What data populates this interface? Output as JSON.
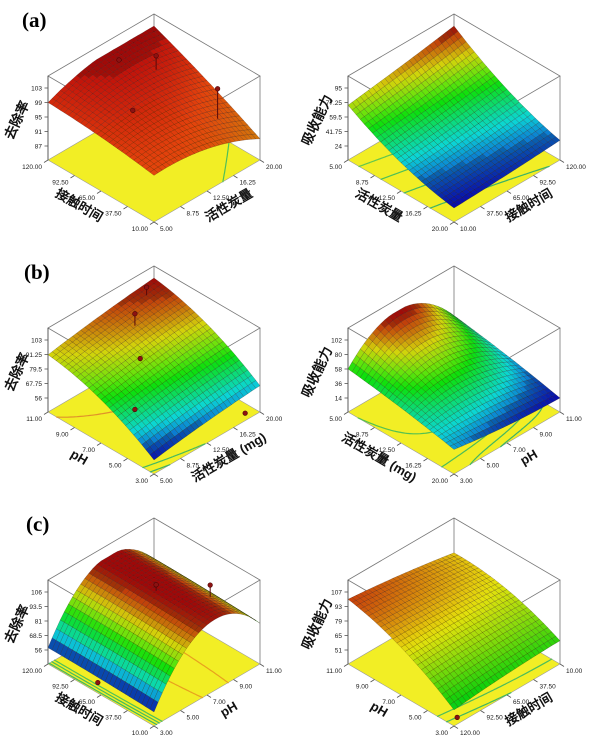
{
  "figure": {
    "background": "#ffffff",
    "panels": [
      {
        "label": "(a)"
      },
      {
        "label": "(b)"
      },
      {
        "label": "(c)"
      }
    ]
  },
  "style_tokens": {
    "floor_color": "#f2ee25",
    "box_line_color": "#777777",
    "axis_line_color": "#555555",
    "tick_text_color": "#1a1a1a",
    "mesh_line_color": "rgba(35,10,10,0.5)",
    "point_color": "#8c1212",
    "point_edge_color": "#4a0404",
    "stick_color": "#5a0808"
  },
  "chart_data": [
    {
      "type": "surface3d",
      "panel": "a",
      "slot": "left",
      "z_axis": {
        "label": "去除率",
        "ticks": [
          "103",
          "99",
          "95",
          "91",
          "87"
        ],
        "range": [
          87,
          103
        ]
      },
      "left_axis": {
        "label": "接触时间",
        "ticks": [
          "120.00",
          "92.50",
          "65.00",
          "37.50",
          "10.00"
        ]
      },
      "right_axis": {
        "label": "活性炭量",
        "ticks": [
          "5.00",
          "8.75",
          "12.50",
          "16.25",
          "20.00"
        ]
      },
      "surface_model": {
        "c0": 96,
        "s": 5,
        "s2": -2,
        "t": 2,
        "t2": -9,
        "st": 11,
        "st2": 0,
        "clamp": [
          87,
          103
        ]
      },
      "colormap": {
        "hue_low": 38,
        "hue_high": 0,
        "ref": [
          87,
          103
        ],
        "dark_low": false
      },
      "contours": [
        {
          "level": 93.5,
          "color": "#4fbf59"
        }
      ],
      "design_points": [
        {
          "s": 0.2,
          "t": 0.8,
          "dz": 30,
          "stick": true
        },
        {
          "s": 0.7,
          "t": 0.72,
          "dz": 14,
          "stick": true
        },
        {
          "s": 0.5,
          "t": 0.3,
          "dz": 3,
          "stick": false
        },
        {
          "s": 0.88,
          "t": 0.55,
          "dz": 3,
          "stick": false
        }
      ]
    },
    {
      "type": "surface3d",
      "panel": "a",
      "slot": "right",
      "z_axis": {
        "label": "吸收能力",
        "ticks": [
          "95",
          "77.25",
          "59.5",
          "41.75",
          "24"
        ],
        "range": [
          24,
          95
        ]
      },
      "left_axis": {
        "label": "活性炭量",
        "ticks": [
          "5.00",
          "8.75",
          "12.50",
          "16.25",
          "20.00"
        ]
      },
      "right_axis": {
        "label": "接触时间",
        "ticks": [
          "10.00",
          "37.50",
          "65.00",
          "92.50",
          "120.00"
        ]
      },
      "surface_model": {
        "c0": 24,
        "s": 20,
        "s2": 30,
        "t": 4,
        "t2": 3,
        "st": 14,
        "st2": 0,
        "clamp": [
          24,
          95
        ]
      },
      "colormap": {
        "hue_low": 240,
        "hue_high": 0,
        "ref": [
          24,
          95
        ],
        "dark_low": true
      },
      "contours": [
        {
          "level": 30,
          "color": "#3db366"
        },
        {
          "level": 40,
          "color": "#46ba5e"
        },
        {
          "level": 52,
          "color": "#4fc056"
        },
        {
          "level": 66,
          "color": "#63c74d"
        }
      ],
      "design_points": []
    },
    {
      "type": "surface3d",
      "panel": "b",
      "slot": "left",
      "z_axis": {
        "label": "去除率",
        "ticks": [
          "103",
          "91.25",
          "79.5",
          "67.75",
          "56"
        ],
        "range": [
          56,
          103
        ]
      },
      "left_axis": {
        "label": "pH",
        "ticks": [
          "11.00",
          "9.00",
          "7.00",
          "5.00",
          "3.00"
        ]
      },
      "right_axis": {
        "label": "活性炭量 (mg)",
        "ticks": [
          "5.00",
          "8.75",
          "12.50",
          "16.25",
          "20.00"
        ]
      },
      "surface_model": {
        "c0": 56,
        "s": 60,
        "s2": -25,
        "t": 14,
        "t2": -4,
        "st": 2,
        "st2": 0,
        "clamp": [
          56,
          103
        ]
      },
      "colormap": {
        "hue_low": 240,
        "hue_high": 0,
        "ref": [
          56,
          103
        ],
        "dark_low": true
      },
      "contours": [
        {
          "level": 58,
          "color": "#3bb06a"
        },
        {
          "level": 62,
          "color": "#47ba5e"
        },
        {
          "level": 90,
          "color": "#e0922a"
        }
      ],
      "design_points": [
        {
          "s": 0.78,
          "t": 0.6,
          "dz": 12,
          "stick": true
        },
        {
          "s": 0.92,
          "t": 0.85,
          "dz": 8,
          "stick": true
        },
        {
          "s": 0.55,
          "t": 0.42,
          "dz": 3,
          "stick": false
        },
        {
          "s": 0.3,
          "t": 0.12,
          "dz": 3,
          "stick": false
        },
        {
          "s": 0.04,
          "t": 0.9,
          "dz": -26,
          "stick": false
        }
      ]
    },
    {
      "type": "surface3d",
      "panel": "b",
      "slot": "right",
      "z_axis": {
        "label": "吸收能力",
        "ticks": [
          "102",
          "80",
          "58",
          "36",
          "14"
        ],
        "range": [
          14,
          102
        ]
      },
      "left_axis": {
        "label": "活性炭量 (mg)",
        "ticks": [
          "5.00",
          "8.75",
          "12.50",
          "16.25",
          "20.00"
        ]
      },
      "right_axis": {
        "label": "pH",
        "ticks": [
          "3.00",
          "5.00",
          "7.00",
          "9.00",
          "11.00"
        ]
      },
      "surface_model": {
        "c0": 30,
        "s": 36,
        "s2": -8,
        "t": -28,
        "t2": 12,
        "st": 220,
        "st2": -217,
        "clamp": [
          14,
          102
        ]
      },
      "colormap": {
        "hue_low": 240,
        "hue_high": 0,
        "ref": [
          14,
          102
        ],
        "dark_low": true
      },
      "contours": [
        {
          "level": 20,
          "color": "#3cb169"
        },
        {
          "level": 26,
          "color": "#42b761"
        },
        {
          "level": 34,
          "color": "#4abd59"
        },
        {
          "level": 56,
          "color": "#55c150"
        }
      ],
      "design_points": []
    },
    {
      "type": "surface3d",
      "panel": "c",
      "slot": "left",
      "z_axis": {
        "label": "去除率",
        "ticks": [
          "106",
          "93.5",
          "81",
          "68.5",
          "56"
        ],
        "range": [
          56,
          106
        ]
      },
      "left_axis": {
        "label": "接触时间",
        "ticks": [
          "120.00",
          "92.50",
          "65.00",
          "37.50",
          "10.00"
        ]
      },
      "right_axis": {
        "label": "pH",
        "ticks": [
          "3.00",
          "5.00",
          "7.00",
          "9.00",
          "11.00"
        ]
      },
      "surface_model": {
        "c0": 56,
        "s": 4,
        "s2": -2,
        "t": 170,
        "t2": -147,
        "st": 0,
        "st2": 0,
        "clamp": [
          56,
          106
        ]
      },
      "colormap": {
        "hue_low": 240,
        "hue_high": 0,
        "ref": [
          56,
          106
        ],
        "dark_low": true
      },
      "contours": [
        {
          "level": 60,
          "color": "#3cb56a"
        },
        {
          "level": 64,
          "color": "#45bb60"
        },
        {
          "level": 68,
          "color": "#50c156"
        },
        {
          "level": 103,
          "color": "#e8a11e"
        }
      ],
      "design_points": [
        {
          "s": 0.5,
          "t": 0.52,
          "dz": 6,
          "stick": true
        },
        {
          "s": 0.25,
          "t": 0.78,
          "dz": 12,
          "stick": true
        },
        {
          "s": 0.6,
          "t": 0.07,
          "dz": -27,
          "stick": false
        }
      ]
    },
    {
      "type": "surface3d",
      "panel": "c",
      "slot": "right",
      "z_axis": {
        "label": "吸收能力",
        "ticks": [
          "107",
          "93",
          "79",
          "65",
          "51"
        ],
        "range": [
          51,
          107
        ]
      },
      "left_axis": {
        "label": "pH",
        "ticks": [
          "11.00",
          "9.00",
          "7.00",
          "5.00",
          "3.00"
        ]
      },
      "right_axis": {
        "label": "接触时间",
        "ticks": [
          "120.00",
          "92.50",
          "65.00",
          "37.50",
          "10.00"
        ]
      },
      "surface_model": {
        "c0": 53,
        "s": 75,
        "s2": -28,
        "t": 12,
        "t2": -5,
        "st": -22,
        "st2": 0,
        "clamp": [
          51,
          107
        ]
      },
      "colormap": {
        "hue_low": 132,
        "hue_high": 0,
        "ref": [
          51,
          107
        ],
        "dark_low": false
      },
      "contours": [
        {
          "level": 58,
          "color": "#41b662"
        },
        {
          "level": 64,
          "color": "#4cbd5a"
        }
      ],
      "design_points": [
        {
          "s": 0.03,
          "t": 0.06,
          "dz": -16,
          "stick": false
        }
      ]
    }
  ]
}
